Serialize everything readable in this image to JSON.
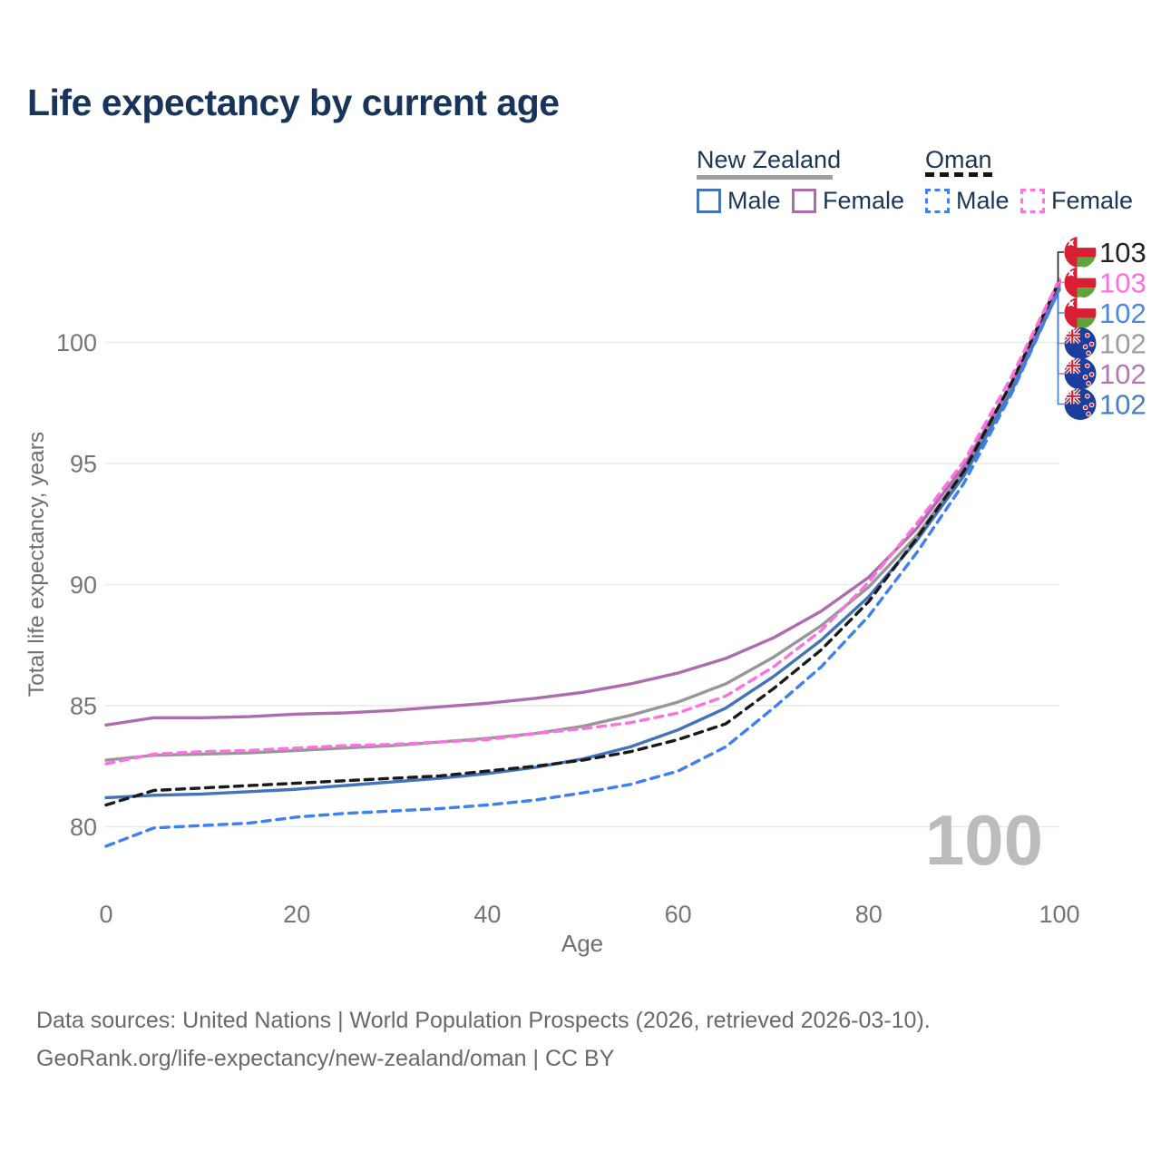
{
  "title": "Life expectancy by current age",
  "watermark": "100",
  "legend": {
    "groups": [
      {
        "name": "New Zealand",
        "line_style": "solid",
        "underline_color": "#9e9e9e",
        "items": [
          {
            "label": "Male",
            "color": "#4373b8"
          },
          {
            "label": "Female",
            "color": "#ae6cae"
          }
        ]
      },
      {
        "name": "Oman",
        "line_style": "dashed",
        "underline_color": "#141414",
        "items": [
          {
            "label": "Male",
            "color": "#3f80f0"
          },
          {
            "label": "Female",
            "color": "#ff70e0"
          }
        ]
      }
    ]
  },
  "footer": {
    "line1": "Data sources: United Nations | World Population Prospects (2026, retrieved 2026-03-10).",
    "line2": "GeoRank.org/life-expectancy/new-zealand/oman | CC BY"
  },
  "chart_data": {
    "type": "line",
    "title": "Life expectancy by current age",
    "xlabel": "Age",
    "ylabel": "Total life expectancy, years",
    "x_ticks": [
      0,
      20,
      40,
      60,
      80,
      100
    ],
    "y_ticks": [
      80,
      85,
      90,
      95,
      100
    ],
    "xlim": [
      0,
      100
    ],
    "ylim": [
      78.5,
      103.5
    ],
    "grid": "horizontal-only",
    "legend_position": "top-right",
    "x": [
      0,
      5,
      10,
      15,
      20,
      25,
      30,
      35,
      40,
      45,
      50,
      55,
      60,
      65,
      70,
      75,
      80,
      85,
      90,
      95,
      100
    ],
    "series": [
      {
        "key": "nz-total",
        "name": "New Zealand",
        "country": "New Zealand",
        "sex": "both",
        "color": "#979797",
        "dash": "solid",
        "values": [
          82.75,
          82.95,
          83.0,
          83.05,
          83.15,
          83.25,
          83.35,
          83.5,
          83.65,
          83.85,
          84.15,
          84.6,
          85.15,
          85.9,
          87.0,
          88.3,
          89.9,
          92.0,
          94.7,
          98.15,
          102.3
        ]
      },
      {
        "key": "nz-female",
        "name": "New Zealand Female",
        "country": "New Zealand",
        "sex": "female",
        "color": "#ae6cae",
        "dash": "solid",
        "values": [
          84.2,
          84.5,
          84.5,
          84.55,
          84.65,
          84.7,
          84.8,
          84.95,
          85.1,
          85.3,
          85.55,
          85.9,
          86.35,
          86.95,
          87.8,
          88.9,
          90.3,
          92.3,
          94.9,
          98.3,
          102.4
        ]
      },
      {
        "key": "nz-male",
        "name": "New Zealand Male",
        "country": "New Zealand",
        "sex": "male",
        "color": "#4373b8",
        "dash": "solid",
        "values": [
          81.2,
          81.3,
          81.35,
          81.45,
          81.55,
          81.7,
          81.85,
          82.0,
          82.2,
          82.45,
          82.8,
          83.3,
          84.0,
          84.9,
          86.2,
          87.7,
          89.5,
          91.8,
          94.5,
          98.0,
          102.2
        ]
      },
      {
        "key": "oman-total",
        "name": "Oman",
        "country": "Oman",
        "sex": "both",
        "color": "#1a1a1a",
        "dash": "dashed",
        "values": [
          80.9,
          81.5,
          81.6,
          81.7,
          81.8,
          81.9,
          82.0,
          82.1,
          82.3,
          82.5,
          82.75,
          83.1,
          83.6,
          84.25,
          85.7,
          87.3,
          89.3,
          91.9,
          94.7,
          98.35,
          102.55
        ]
      },
      {
        "key": "oman-female",
        "name": "Oman Female",
        "country": "Oman",
        "sex": "female",
        "color": "#ff70e0",
        "dash": "dashed",
        "values": [
          82.6,
          83.0,
          83.1,
          83.15,
          83.25,
          83.35,
          83.4,
          83.5,
          83.6,
          83.85,
          84.05,
          84.3,
          84.7,
          85.4,
          86.6,
          88.1,
          90.1,
          92.5,
          95.1,
          98.6,
          102.6
        ]
      },
      {
        "key": "oman-male",
        "name": "Oman Male",
        "country": "Oman",
        "sex": "male",
        "color": "#3f80f0",
        "dash": "dashed",
        "values": [
          79.2,
          79.95,
          80.05,
          80.15,
          80.4,
          80.55,
          80.65,
          80.75,
          80.9,
          81.1,
          81.4,
          81.75,
          82.3,
          83.3,
          84.9,
          86.6,
          88.7,
          91.3,
          94.2,
          97.9,
          102.2
        ]
      }
    ],
    "end_labels": [
      {
        "series": "oman-total",
        "flag": "oman",
        "value": "103",
        "color": "#212121"
      },
      {
        "series": "oman-female",
        "flag": "oman",
        "value": "103",
        "color": "#ff6ee0"
      },
      {
        "series": "oman-male",
        "flag": "oman",
        "value": "102",
        "color": "#4b86ec"
      },
      {
        "series": "nz-total",
        "flag": "new-zealand",
        "value": "102",
        "color": "#9d9d9d"
      },
      {
        "series": "nz-female",
        "flag": "new-zealand",
        "value": "102",
        "color": "#b476b4"
      },
      {
        "series": "nz-male",
        "flag": "new-zealand",
        "value": "102",
        "color": "#4a7cc4"
      }
    ]
  }
}
